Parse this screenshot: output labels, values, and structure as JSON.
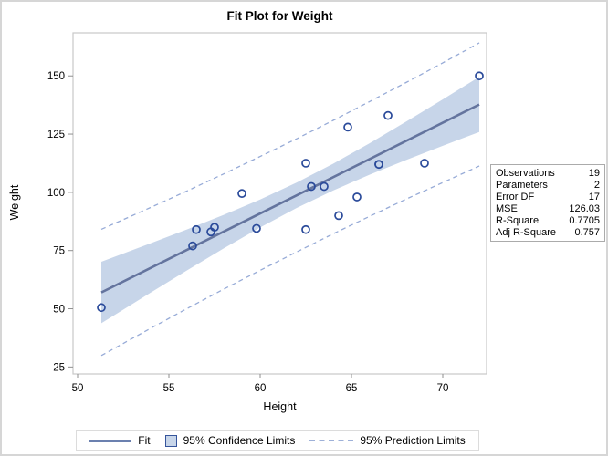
{
  "colors": {
    "band_fill": "#c7d5e9",
    "fit_line": "#64749e",
    "prediction_line": "#97abd7",
    "marker": "#2a4a9a",
    "frame": "#c8c8c8",
    "tick": "#8f8f8f",
    "text": "#000000"
  },
  "chart_data": {
    "type": "scatter",
    "title": "Fit Plot for Weight",
    "xlabel": "Height",
    "ylabel": "Weight",
    "x_ticks": [
      50,
      55,
      60,
      65,
      70
    ],
    "y_ticks": [
      25,
      50,
      75,
      100,
      125,
      150
    ],
    "xlim": [
      49.75,
      72.4
    ],
    "ylim": [
      22.0,
      168.5
    ],
    "grid": false,
    "points": [
      [
        51.3,
        50.5
      ],
      [
        56.3,
        77
      ],
      [
        56.5,
        84
      ],
      [
        57.3,
        83
      ],
      [
        57.5,
        85
      ],
      [
        59,
        99.5
      ],
      [
        59.8,
        84.5
      ],
      [
        62.5,
        84
      ],
      [
        62.5,
        112.5
      ],
      [
        62.8,
        102.5
      ],
      [
        63.5,
        102.5
      ],
      [
        64.3,
        90
      ],
      [
        64.8,
        128
      ],
      [
        65.3,
        98
      ],
      [
        66.5,
        112
      ],
      [
        66.5,
        112
      ],
      [
        67,
        133
      ],
      [
        69,
        112.5
      ],
      [
        72,
        150
      ]
    ],
    "fit_line": {
      "x": [
        51.3,
        72
      ],
      "y": [
        57.0,
        137.7
      ]
    },
    "confidence_band": {
      "x": [
        51.3,
        54,
        56,
        58,
        60,
        62,
        64,
        66,
        68,
        70,
        72
      ],
      "upper": [
        70.2,
        78.1,
        84.1,
        90.3,
        96.9,
        104.2,
        112.3,
        121.1,
        130.4,
        139.9,
        149.6
      ],
      "lower": [
        43.8,
        56.9,
        66.5,
        75.9,
        84.9,
        93.3,
        100.8,
        107.6,
        113.9,
        120.0,
        125.9
      ]
    },
    "prediction_upper": {
      "x": [
        51.3,
        54,
        56,
        58,
        60,
        62,
        64,
        66,
        68,
        70,
        72
      ],
      "y": [
        84.1,
        93.5,
        100.6,
        107.9,
        115.4,
        123.0,
        130.9,
        139.0,
        147.2,
        155.6,
        164.2
      ]
    },
    "prediction_lower": {
      "x": [
        51.3,
        54,
        56,
        58,
        60,
        62,
        64,
        66,
        68,
        70,
        72
      ],
      "y": [
        29.9,
        41.6,
        50.1,
        58.4,
        66.5,
        74.4,
        82.2,
        89.7,
        97.1,
        104.2,
        111.3
      ]
    }
  },
  "stats": {
    "rows": [
      {
        "label": "Observations",
        "value": "19"
      },
      {
        "label": "Parameters",
        "value": "2"
      },
      {
        "label": "Error DF",
        "value": "17"
      },
      {
        "label": "MSE",
        "value": "126.03"
      },
      {
        "label": "R-Square",
        "value": "0.7705"
      },
      {
        "label": "Adj R-Square",
        "value": "0.757"
      }
    ]
  },
  "legend": {
    "items": [
      {
        "label": "Fit",
        "swatch": "fit-line-swatch"
      },
      {
        "label": "95% Confidence Limits",
        "swatch": "confidence-band-swatch"
      },
      {
        "label": "95% Prediction Limits",
        "swatch": "prediction-line-swatch"
      }
    ]
  }
}
